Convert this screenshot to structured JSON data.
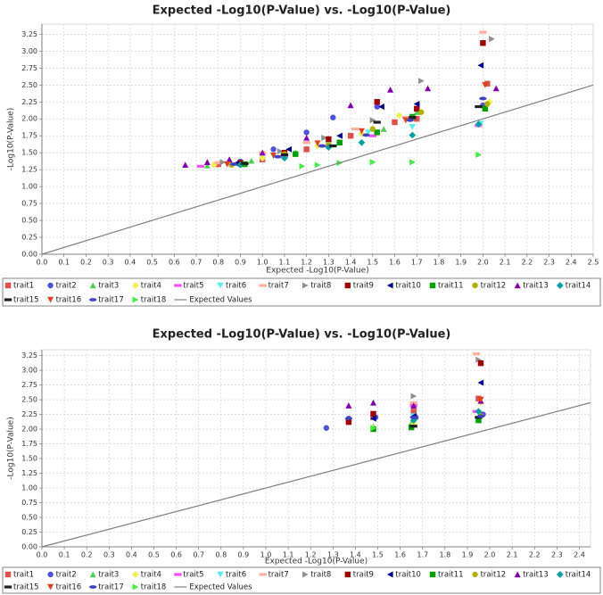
{
  "chart_data": [
    {
      "type": "scatter",
      "title": "Expected -Log10(P-Value) vs. -Log10(P-Value)",
      "x_label": "Expected -Log10(P-Value)",
      "y_label": "-Log10(P-Value)",
      "grid": true,
      "xlim": [
        0,
        2.5
      ],
      "ylim": [
        0,
        3.4
      ],
      "xticks": [
        {
          "value": 0,
          "label": "0.0"
        },
        0.1,
        0.2,
        0.3,
        0.4,
        0.5,
        0.6,
        0.7,
        0.8,
        0.9,
        {
          "value": 1,
          "label": "1.0"
        },
        1.1,
        1.2,
        1.3,
        1.4,
        1.5,
        1.6,
        1.7,
        1.8,
        1.9,
        {
          "value": 2,
          "label": "2.0"
        },
        2.1,
        2.2,
        2.3,
        2.4,
        2.5
      ],
      "yticks": [
        {
          "value": 0,
          "label": "0.00"
        },
        0.25,
        {
          "value": 0.5,
          "label": "0.50"
        },
        0.75,
        {
          "value": 1,
          "label": "1.00"
        },
        1.25,
        {
          "value": 1.5,
          "label": "1.50"
        },
        1.75,
        {
          "value": 2,
          "label": "2.00"
        },
        2.25,
        {
          "value": 2.5,
          "label": "2.50"
        },
        2.75,
        {
          "value": 3,
          "label": "3.00"
        },
        3.25
      ],
      "series": [
        {
          "name": "trait1",
          "color": "#e0504a",
          "marker": "square",
          "x": [
            0.8,
            1.0,
            1.2,
            1.4,
            1.6,
            1.7,
            2.02
          ],
          "values": [
            1.33,
            1.4,
            1.55,
            1.75,
            1.95,
            2.0,
            2.52
          ]
        },
        {
          "name": "trait2",
          "color": "#5050e0",
          "marker": "circle",
          "x": [
            0.9,
            1.05,
            1.2,
            1.32,
            1.52,
            2.0
          ],
          "values": [
            1.37,
            1.55,
            1.8,
            2.02,
            2.18,
            2.2
          ]
        },
        {
          "name": "trait3",
          "color": "#50d050",
          "marker": "triangle",
          "x": [
            0.75,
            0.95,
            1.15,
            1.35,
            1.55,
            1.7
          ],
          "values": [
            1.31,
            1.38,
            1.5,
            1.65,
            1.85,
            2.1
          ]
        },
        {
          "name": "trait4",
          "color": "#f0f050",
          "marker": "diamond",
          "x": [
            0.78,
            1.0,
            1.25,
            1.45,
            1.62,
            2.03
          ],
          "values": [
            1.32,
            1.42,
            1.6,
            1.78,
            2.05,
            2.25
          ]
        },
        {
          "name": "trait5",
          "color": "#f050f0",
          "marker": "dash",
          "x": [
            0.72,
            0.9,
            1.1,
            1.3,
            1.5,
            1.98
          ],
          "values": [
            1.3,
            1.35,
            1.45,
            1.6,
            1.75,
            1.9
          ]
        },
        {
          "name": "trait6",
          "color": "#50f0f0",
          "marker": "down",
          "x": [
            0.85,
            1.05,
            1.3,
            1.48,
            1.68,
            1.99
          ],
          "values": [
            1.33,
            1.45,
            1.62,
            1.8,
            1.88,
            1.93
          ]
        },
        {
          "name": "trait7",
          "color": "#ffb0a0",
          "marker": "dash",
          "x": [
            0.8,
            1.0,
            1.2,
            1.42,
            1.65,
            2.0
          ],
          "values": [
            1.35,
            1.5,
            1.65,
            1.85,
            2.02,
            3.28
          ]
        },
        {
          "name": "trait8",
          "color": "#909090",
          "marker": "right",
          "x": [
            0.82,
            1.08,
            1.28,
            1.5,
            1.72,
            2.04
          ],
          "values": [
            1.36,
            1.52,
            1.72,
            1.98,
            2.56,
            3.18
          ]
        },
        {
          "name": "trait9",
          "color": "#a00000",
          "marker": "square",
          "x": [
            0.9,
            1.1,
            1.3,
            1.52,
            1.7,
            2.0
          ],
          "values": [
            1.35,
            1.5,
            1.7,
            2.25,
            2.15,
            3.12
          ]
        },
        {
          "name": "trait10",
          "color": "#000090",
          "marker": "left",
          "x": [
            0.88,
            1.12,
            1.35,
            1.54,
            1.7,
            1.99
          ],
          "values": [
            1.34,
            1.55,
            1.75,
            2.18,
            2.22,
            2.79
          ]
        },
        {
          "name": "trait11",
          "color": "#00a000",
          "marker": "square",
          "x": [
            0.92,
            1.15,
            1.35,
            1.52,
            1.68,
            2.01
          ],
          "values": [
            1.33,
            1.48,
            1.65,
            1.8,
            2.03,
            2.15
          ]
        },
        {
          "name": "trait12",
          "color": "#b0b000",
          "marker": "circle",
          "x": [
            0.86,
            1.1,
            1.3,
            1.5,
            1.72,
            2.02
          ],
          "values": [
            1.32,
            1.48,
            1.62,
            1.85,
            2.1,
            2.22
          ]
        },
        {
          "name": "trait13",
          "color": "#8000b0",
          "marker": "triangle",
          "x": [
            0.65,
            0.75,
            0.85,
            1.0,
            1.2,
            1.4,
            1.58,
            1.75,
            2.06
          ],
          "values": [
            1.32,
            1.36,
            1.4,
            1.5,
            1.72,
            2.2,
            2.43,
            2.45,
            2.45
          ]
        },
        {
          "name": "trait14",
          "color": "#00a0a0",
          "marker": "diamond",
          "x": [
            0.9,
            1.1,
            1.3,
            1.45,
            1.68,
            1.98
          ],
          "values": [
            1.32,
            1.42,
            1.58,
            1.65,
            1.76,
            1.92
          ]
        },
        {
          "name": "trait15",
          "color": "#202020",
          "marker": "dash",
          "x": [
            0.92,
            1.1,
            1.32,
            1.52,
            1.68,
            1.98
          ],
          "values": [
            1.34,
            1.47,
            1.6,
            1.95,
            2.02,
            2.18
          ]
        },
        {
          "name": "trait16",
          "color": "#e04020",
          "marker": "down",
          "x": [
            0.84,
            1.05,
            1.25,
            1.45,
            1.65,
            2.01
          ],
          "values": [
            1.33,
            1.46,
            1.64,
            1.82,
            1.98,
            2.5
          ]
        },
        {
          "name": "trait17",
          "color": "#4040c0",
          "marker": "ellipse",
          "x": [
            0.87,
            1.07,
            1.27,
            1.47,
            1.67,
            2.0
          ],
          "values": [
            1.33,
            1.44,
            1.6,
            1.76,
            1.98,
            2.3
          ]
        },
        {
          "name": "trait18",
          "color": "#40f040",
          "marker": "right",
          "x": [
            1.18,
            1.25,
            1.35,
            1.5,
            1.68,
            1.98
          ],
          "values": [
            1.3,
            1.32,
            1.35,
            1.36,
            1.36,
            1.47
          ]
        },
        {
          "name": "Expected Values",
          "color": "#808080",
          "type": "line",
          "x": [
            0,
            2.5
          ],
          "values": [
            0,
            2.5
          ]
        }
      ]
    },
    {
      "type": "scatter",
      "title": "Expected -Log10(P-Value) vs. -Log10(P-Value)",
      "x_label": "Expected -Log10(P-Value)",
      "y_label": "-Log10(P-Value)",
      "grid": true,
      "xlim": [
        0,
        2.45
      ],
      "ylim": [
        0,
        3.35
      ],
      "xticks": [
        {
          "value": 0,
          "label": "0.0"
        },
        0.1,
        0.2,
        0.3,
        0.4,
        0.5,
        0.6,
        0.7,
        0.8,
        0.9,
        {
          "value": 1,
          "label": "1.0"
        },
        1.1,
        1.2,
        1.3,
        1.4,
        1.5,
        1.6,
        1.7,
        1.8,
        1.9,
        {
          "value": 2,
          "label": "2.0"
        },
        2.1,
        2.2,
        2.3,
        2.4
      ],
      "yticks": [
        {
          "value": 0,
          "label": "0.00"
        },
        0.25,
        {
          "value": 0.5,
          "label": "0.50"
        },
        0.75,
        {
          "value": 1,
          "label": "1.00"
        },
        1.25,
        {
          "value": 1.5,
          "label": "1.50"
        },
        1.75,
        {
          "value": 2,
          "label": "2.00"
        },
        2.25,
        {
          "value": 2.5,
          "label": "2.50"
        },
        2.75,
        {
          "value": 3,
          "label": "3.00"
        },
        3.25
      ],
      "series": [
        {
          "name": "trait1",
          "color": "#e0504a",
          "marker": "square",
          "x": [
            1.37,
            1.48,
            1.66,
            1.95
          ],
          "values": [
            2.15,
            2.2,
            2.3,
            2.52
          ]
        },
        {
          "name": "trait2",
          "color": "#5050e0",
          "marker": "circle",
          "x": [
            1.27,
            1.37,
            1.49,
            1.67,
            1.97
          ],
          "values": [
            2.02,
            2.18,
            2.2,
            2.2,
            2.25
          ]
        },
        {
          "name": "trait3",
          "color": "#50d050",
          "marker": "triangle",
          "x": [
            1.48,
            1.65,
            1.95
          ],
          "values": [
            2.05,
            2.1,
            2.18
          ]
        },
        {
          "name": "trait4",
          "color": "#f0f050",
          "marker": "diamond",
          "x": [
            1.48,
            1.66,
            1.96
          ],
          "values": [
            2.02,
            2.08,
            2.45
          ]
        },
        {
          "name": "trait5",
          "color": "#f050f0",
          "marker": "dash",
          "x": [
            1.66,
            1.94
          ],
          "values": [
            2.4,
            2.3
          ]
        },
        {
          "name": "trait6",
          "color": "#50f0f0",
          "marker": "down",
          "x": [
            1.66,
            1.96
          ],
          "values": [
            2.22,
            2.2
          ]
        },
        {
          "name": "trait7",
          "color": "#ffb0a0",
          "marker": "dash",
          "x": [
            1.66,
            1.94
          ],
          "values": [
            2.45,
            3.28
          ]
        },
        {
          "name": "trait8",
          "color": "#909090",
          "marker": "right",
          "x": [
            1.66,
            1.95
          ],
          "values": [
            2.56,
            3.18
          ]
        },
        {
          "name": "trait9",
          "color": "#a00000",
          "marker": "square",
          "x": [
            1.37,
            1.48,
            1.96
          ],
          "values": [
            2.12,
            2.26,
            3.12
          ]
        },
        {
          "name": "trait10",
          "color": "#000090",
          "marker": "left",
          "x": [
            1.48,
            1.66,
            1.96
          ],
          "values": [
            2.18,
            2.22,
            2.79
          ]
        },
        {
          "name": "trait11",
          "color": "#00a000",
          "marker": "square",
          "x": [
            1.48,
            1.65,
            1.95
          ],
          "values": [
            2.0,
            2.03,
            2.15
          ]
        },
        {
          "name": "trait12",
          "color": "#b0b000",
          "marker": "circle",
          "x": [
            1.66,
            1.96
          ],
          "values": [
            2.15,
            2.22
          ]
        },
        {
          "name": "trait13",
          "color": "#8000b0",
          "marker": "triangle",
          "x": [
            1.37,
            1.48,
            1.66,
            1.96
          ],
          "values": [
            2.4,
            2.45,
            2.4,
            2.48
          ]
        },
        {
          "name": "trait14",
          "color": "#00a0a0",
          "marker": "diamond",
          "x": [
            1.66,
            1.95
          ],
          "values": [
            2.15,
            2.3
          ]
        },
        {
          "name": "trait15",
          "color": "#202020",
          "marker": "dash",
          "x": [
            1.66,
            1.95
          ],
          "values": [
            2.05,
            2.2
          ]
        },
        {
          "name": "trait16",
          "color": "#e04020",
          "marker": "down",
          "x": [
            1.96
          ],
          "values": [
            2.5
          ]
        },
        {
          "name": "trait17",
          "color": "#4040c0",
          "marker": "ellipse",
          "x": [
            1.37,
            1.66,
            1.96
          ],
          "values": [
            2.18,
            2.2,
            2.22
          ]
        },
        {
          "name": "trait18",
          "color": "#40f040",
          "marker": "right",
          "x": [
            1.48
          ],
          "values": [
            2.02
          ]
        },
        {
          "name": "Expected Values",
          "color": "#808080",
          "type": "line",
          "x": [
            0,
            2.45
          ],
          "values": [
            0,
            2.45
          ]
        }
      ]
    }
  ]
}
